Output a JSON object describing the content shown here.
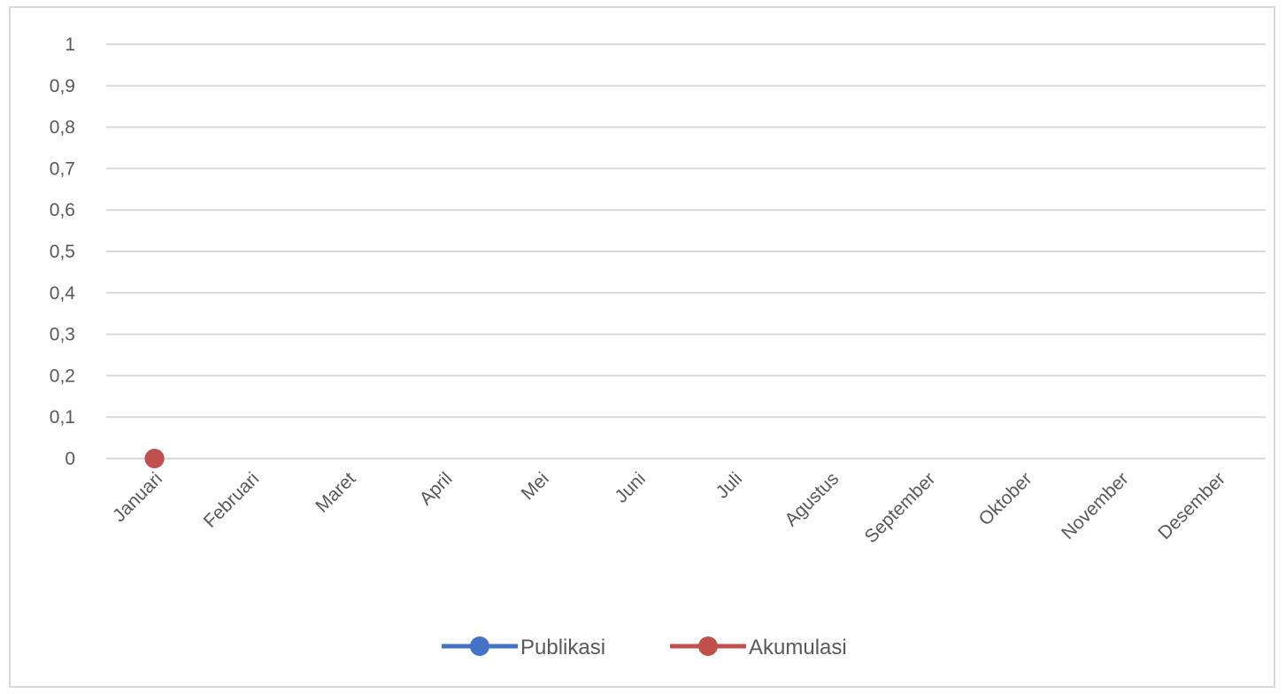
{
  "chart_data": {
    "type": "line",
    "title": "",
    "xlabel": "",
    "ylabel": "",
    "categories": [
      "Januari",
      "Februari",
      "Maret",
      "April",
      "Mei",
      "Juni",
      "Juli",
      "Agustus",
      "September",
      "Oktober",
      "November",
      "Desember"
    ],
    "ylim": [
      0,
      1
    ],
    "yticks": [
      "0",
      "0,1",
      "0,2",
      "0,3",
      "0,4",
      "0,5",
      "0,6",
      "0,7",
      "0,8",
      "0,9",
      "1"
    ],
    "grid": true,
    "legend_position": "bottom",
    "series": [
      {
        "name": "Publikasi",
        "color": "#4472c4",
        "values": [
          0,
          null,
          null,
          null,
          null,
          null,
          null,
          null,
          null,
          null,
          null,
          null
        ]
      },
      {
        "name": "Akumulasi",
        "color": "#c0504d",
        "values": [
          0,
          null,
          null,
          null,
          null,
          null,
          null,
          null,
          null,
          null,
          null,
          null
        ]
      }
    ]
  }
}
